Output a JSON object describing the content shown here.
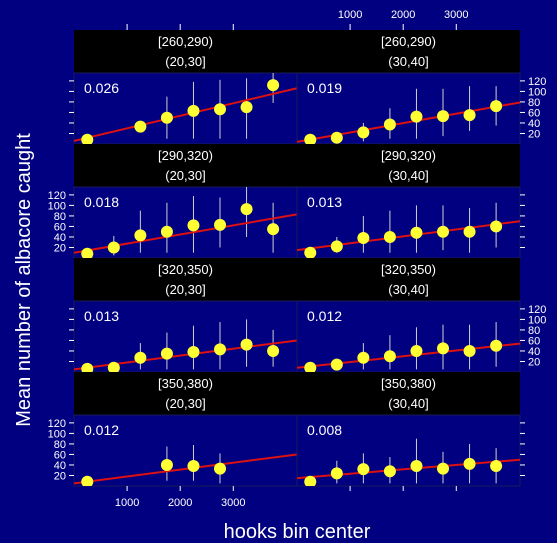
{
  "xlabel": "hooks bin center",
  "ylabel": "Mean number of albacore caught",
  "x_ticks": [
    "1000",
    "2000",
    "3000"
  ],
  "y_ticks": [
    "20",
    "40",
    "60",
    "80",
    "100",
    "120"
  ],
  "colors": {
    "background": "#000080",
    "strip": "#000000",
    "point": "#ffff33",
    "line": "#dd1111",
    "errorbar": "#d0d0d0"
  },
  "chart_data": {
    "type": "scatter",
    "title": "",
    "xlabel": "hooks bin center",
    "ylabel": "Mean number of albacore caught",
    "xlim": [
      0,
      4200
    ],
    "ylim": [
      0,
      135
    ],
    "grid": false,
    "layout": "2 columns x 4 rows, bottom row first",
    "panels": [
      {
        "strip": [
          "[260,290)",
          "(20,30]"
        ],
        "annotation": "0.026",
        "points": [
          {
            "x": 250,
            "y": 8,
            "low": 2,
            "high": 14
          },
          {
            "x": 1250,
            "y": 33,
            "low": 25,
            "high": 41
          },
          {
            "x": 1750,
            "y": 50,
            "low": 10,
            "high": 90
          },
          {
            "x": 2250,
            "y": 63,
            "low": 10,
            "high": 118
          },
          {
            "x": 2750,
            "y": 66,
            "low": 10,
            "high": 122
          },
          {
            "x": 3250,
            "y": 70,
            "low": 10,
            "high": 125
          },
          {
            "x": 3750,
            "y": 112,
            "low": 78,
            "high": 135
          }
        ],
        "fit": [
          [
            0,
            6
          ],
          [
            4200,
            106
          ]
        ]
      },
      {
        "strip": [
          "[260,290)",
          "(30,40]"
        ],
        "annotation": "0.019",
        "points": [
          {
            "x": 250,
            "y": 8,
            "low": 2,
            "high": 14
          },
          {
            "x": 750,
            "y": 12,
            "low": 5,
            "high": 22
          },
          {
            "x": 1250,
            "y": 22,
            "low": 5,
            "high": 40
          },
          {
            "x": 1750,
            "y": 37,
            "low": 10,
            "high": 68
          },
          {
            "x": 2250,
            "y": 52,
            "low": 10,
            "high": 105
          },
          {
            "x": 2750,
            "y": 53,
            "low": 15,
            "high": 105
          },
          {
            "x": 3250,
            "y": 55,
            "low": 25,
            "high": 110
          },
          {
            "x": 3750,
            "y": 72,
            "low": 35,
            "high": 110
          }
        ],
        "fit": [
          [
            0,
            4
          ],
          [
            4200,
            79
          ]
        ]
      },
      {
        "strip": [
          "[290,320)",
          "(20,30]"
        ],
        "annotation": "0.018",
        "points": [
          {
            "x": 250,
            "y": 8,
            "low": 2,
            "high": 14
          },
          {
            "x": 750,
            "y": 20,
            "low": 5,
            "high": 42
          },
          {
            "x": 1250,
            "y": 43,
            "low": 10,
            "high": 90
          },
          {
            "x": 1750,
            "y": 50,
            "low": 10,
            "high": 105
          },
          {
            "x": 2250,
            "y": 62,
            "low": 10,
            "high": 118
          },
          {
            "x": 2750,
            "y": 63,
            "low": 20,
            "high": 115
          },
          {
            "x": 3250,
            "y": 93,
            "low": 40,
            "high": 135
          },
          {
            "x": 3750,
            "y": 55,
            "low": 10,
            "high": 105
          }
        ],
        "fit": [
          [
            0,
            10
          ],
          [
            4200,
            83
          ]
        ]
      },
      {
        "strip": [
          "[290,320)",
          "(30,40]"
        ],
        "annotation": "0.013",
        "points": [
          {
            "x": 250,
            "y": 10,
            "low": 2,
            "high": 18
          },
          {
            "x": 750,
            "y": 22,
            "low": 10,
            "high": 40
          },
          {
            "x": 1250,
            "y": 38,
            "low": 10,
            "high": 80
          },
          {
            "x": 1750,
            "y": 40,
            "low": 10,
            "high": 90
          },
          {
            "x": 2250,
            "y": 48,
            "low": 10,
            "high": 100
          },
          {
            "x": 2750,
            "y": 50,
            "low": 15,
            "high": 100
          },
          {
            "x": 3250,
            "y": 50,
            "low": 10,
            "high": 95
          },
          {
            "x": 3750,
            "y": 60,
            "low": 20,
            "high": 105
          }
        ],
        "fit": [
          [
            0,
            15
          ],
          [
            4200,
            70
          ]
        ]
      },
      {
        "strip": [
          "[320,350)",
          "(20,30]"
        ],
        "annotation": "0.013",
        "points": [
          {
            "x": 250,
            "y": 6,
            "low": 2,
            "high": 10
          },
          {
            "x": 750,
            "y": 8,
            "low": 3,
            "high": 14
          },
          {
            "x": 1250,
            "y": 27,
            "low": 5,
            "high": 55
          },
          {
            "x": 1750,
            "y": 35,
            "low": 5,
            "high": 75
          },
          {
            "x": 2250,
            "y": 38,
            "low": 5,
            "high": 88
          },
          {
            "x": 2750,
            "y": 43,
            "low": 5,
            "high": 95
          },
          {
            "x": 3250,
            "y": 52,
            "low": 10,
            "high": 100
          },
          {
            "x": 3750,
            "y": 40,
            "low": 10,
            "high": 80
          }
        ],
        "fit": [
          [
            0,
            5
          ],
          [
            4200,
            60
          ]
        ]
      },
      {
        "strip": [
          "[320,350)",
          "(30,40]"
        ],
        "annotation": "0.012",
        "points": [
          {
            "x": 250,
            "y": 8,
            "low": 2,
            "high": 14
          },
          {
            "x": 750,
            "y": 14,
            "low": 5,
            "high": 25
          },
          {
            "x": 1250,
            "y": 27,
            "low": 5,
            "high": 55
          },
          {
            "x": 1750,
            "y": 30,
            "low": 5,
            "high": 70
          },
          {
            "x": 2250,
            "y": 40,
            "low": 5,
            "high": 85
          },
          {
            "x": 2750,
            "y": 45,
            "low": 5,
            "high": 90
          },
          {
            "x": 3250,
            "y": 40,
            "low": 5,
            "high": 90
          },
          {
            "x": 3750,
            "y": 50,
            "low": 10,
            "high": 95
          }
        ],
        "fit": [
          [
            0,
            8
          ],
          [
            4200,
            54
          ]
        ]
      },
      {
        "strip": [
          "[350,380)",
          "(20,30]"
        ],
        "annotation": "0.012",
        "points": [
          {
            "x": 250,
            "y": 8,
            "low": 2,
            "high": 14
          },
          {
            "x": 1750,
            "y": 40,
            "low": 10,
            "high": 75
          },
          {
            "x": 2250,
            "y": 38,
            "low": 10,
            "high": 78
          },
          {
            "x": 2750,
            "y": 33,
            "low": 5,
            "high": 62
          }
        ],
        "fit": [
          [
            0,
            5
          ],
          [
            4200,
            60
          ]
        ]
      },
      {
        "strip": [
          "[350,380)",
          "(30,40]"
        ],
        "annotation": "0.008",
        "points": [
          {
            "x": 250,
            "y": 8,
            "low": 2,
            "high": 14
          },
          {
            "x": 750,
            "y": 24,
            "low": 5,
            "high": 48
          },
          {
            "x": 1250,
            "y": 32,
            "low": 5,
            "high": 62
          },
          {
            "x": 1750,
            "y": 28,
            "low": 5,
            "high": 55
          },
          {
            "x": 2250,
            "y": 38,
            "low": 5,
            "high": 90
          },
          {
            "x": 2750,
            "y": 33,
            "low": 5,
            "high": 65
          },
          {
            "x": 3250,
            "y": 42,
            "low": 5,
            "high": 80
          },
          {
            "x": 3750,
            "y": 38,
            "low": 5,
            "high": 72
          }
        ],
        "fit": [
          [
            0,
            15
          ],
          [
            4200,
            50
          ]
        ]
      }
    ]
  }
}
